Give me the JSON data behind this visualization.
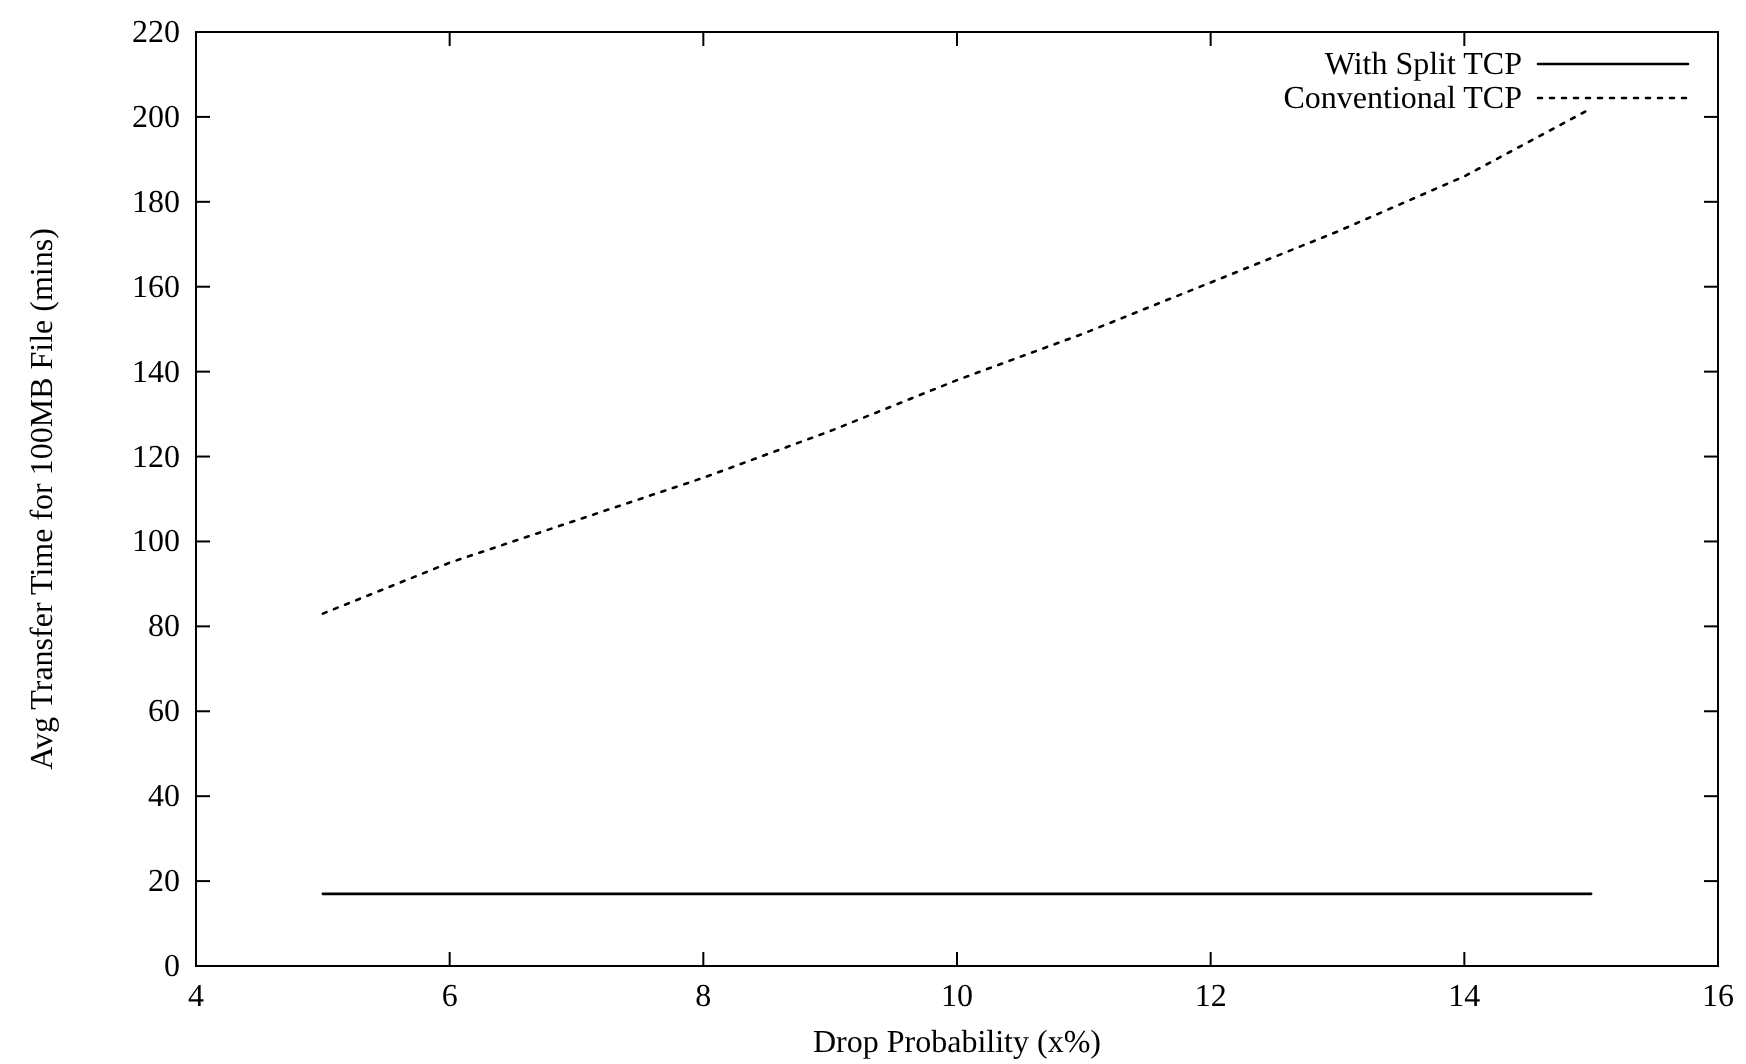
{
  "chart_data": {
    "type": "line",
    "xlabel": "Drop Probability (x%)",
    "ylabel": "Avg Transfer Time for 100MB File (mins)",
    "x": [
      5,
      6,
      7,
      8,
      9,
      10,
      11,
      12,
      13,
      14,
      15
    ],
    "series": [
      {
        "name": "With Split TCP",
        "color": "#000000",
        "line_style": "solid",
        "values": [
          17,
          17,
          17,
          17,
          17,
          17,
          17,
          17,
          17,
          17,
          17
        ]
      },
      {
        "name": "Conventional TCP",
        "color": "#000000",
        "line_style": "dotted",
        "values": [
          83,
          95,
          105,
          115,
          126,
          138,
          149,
          161,
          173,
          186,
          202
        ]
      }
    ],
    "xlim": [
      4,
      16
    ],
    "xticks": [
      4,
      6,
      8,
      10,
      12,
      14,
      16
    ],
    "ylim": [
      0,
      220
    ],
    "yticks": [
      0,
      20,
      40,
      60,
      80,
      100,
      120,
      140,
      160,
      180,
      200,
      220
    ],
    "legend": "top right",
    "grid": false,
    "marker": "none"
  }
}
